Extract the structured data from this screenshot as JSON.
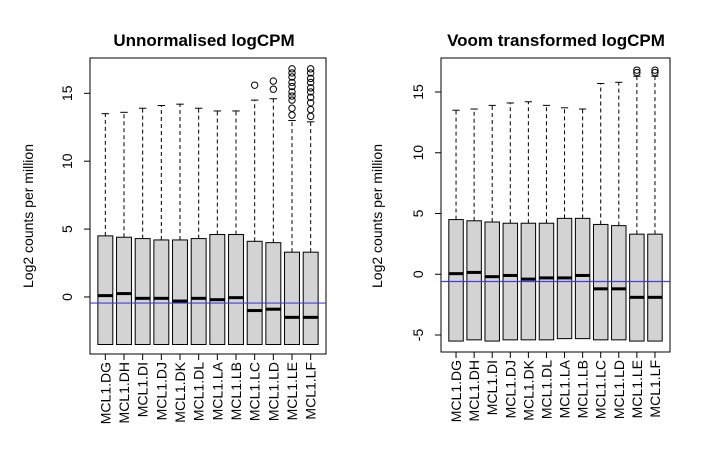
{
  "chart_data": [
    {
      "type": "boxplot",
      "title": "Unnormalised logCPM",
      "xlabel": "",
      "ylabel": "Log2 counts per million",
      "ylim": [
        -4.2,
        17.6
      ],
      "yticks": [
        0,
        5,
        10,
        15
      ],
      "hline": {
        "y": -0.45,
        "color": "#3f3fe0"
      },
      "categories": [
        "MCL1.DG",
        "MCL1.DH",
        "MCL1.DI",
        "MCL1.DJ",
        "MCL1.DK",
        "MCL1.DL",
        "MCL1.LA",
        "MCL1.LB",
        "MCL1.LC",
        "MCL1.LD",
        "MCL1.LE",
        "MCL1.LF"
      ],
      "boxes": [
        {
          "min": -3.5,
          "q1": -3.5,
          "median": 0.1,
          "q3": 4.5,
          "max": 13.5
        },
        {
          "min": -3.5,
          "q1": -3.5,
          "median": 0.25,
          "q3": 4.4,
          "max": 13.6
        },
        {
          "min": -3.5,
          "q1": -3.5,
          "median": -0.1,
          "q3": 4.3,
          "max": 13.9
        },
        {
          "min": -3.5,
          "q1": -3.5,
          "median": -0.1,
          "q3": 4.2,
          "max": 14.1
        },
        {
          "min": -3.5,
          "q1": -3.5,
          "median": -0.3,
          "q3": 4.2,
          "max": 14.2
        },
        {
          "min": -3.5,
          "q1": -3.5,
          "median": -0.1,
          "q3": 4.3,
          "max": 13.9
        },
        {
          "min": -3.5,
          "q1": -3.5,
          "median": -0.2,
          "q3": 4.6,
          "max": 13.7
        },
        {
          "min": -3.5,
          "q1": -3.5,
          "median": -0.05,
          "q3": 4.6,
          "max": 13.7
        },
        {
          "min": -3.5,
          "q1": -3.5,
          "median": -1.0,
          "q3": 4.1,
          "max": 14.5,
          "outliers": [
            15.6
          ]
        },
        {
          "min": -3.5,
          "q1": -3.5,
          "median": -0.9,
          "q3": 4.0,
          "max": 14.6,
          "outliers": [
            15.3,
            15.9
          ]
        },
        {
          "min": -3.5,
          "q1": -3.5,
          "median": -1.5,
          "q3": 3.3,
          "max": 13.0,
          "outliers": [
            13.4,
            13.9,
            14.5,
            14.8,
            15.1,
            15.5,
            15.8,
            16.2,
            16.5,
            16.8
          ]
        },
        {
          "min": -3.5,
          "q1": -3.5,
          "median": -1.5,
          "q3": 3.3,
          "max": 12.9,
          "outliers": [
            13.3,
            13.8,
            14.3,
            14.7,
            15.1,
            15.4,
            15.8,
            16.1,
            16.5,
            16.8
          ]
        }
      ]
    },
    {
      "type": "boxplot",
      "title": "Voom transformed logCPM",
      "xlabel": "",
      "ylabel": "Log2 counts per million",
      "ylim": [
        -6.4,
        17.8
      ],
      "yticks": [
        -5,
        0,
        5,
        10,
        15
      ],
      "hline": {
        "y": -0.6,
        "color": "#3f3fe0"
      },
      "categories": [
        "MCL1.DG",
        "MCL1.DH",
        "MCL1.DI",
        "MCL1.DJ",
        "MCL1.DK",
        "MCL1.DL",
        "MCL1.LA",
        "MCL1.LB",
        "MCL1.LC",
        "MCL1.LD",
        "MCL1.LE",
        "MCL1.LF"
      ],
      "boxes": [
        {
          "min": -5.5,
          "q1": -5.5,
          "median": 0.05,
          "q3": 4.5,
          "max": 13.5
        },
        {
          "min": -5.4,
          "q1": -5.4,
          "median": 0.15,
          "q3": 4.4,
          "max": 13.6
        },
        {
          "min": -5.5,
          "q1": -5.5,
          "median": -0.2,
          "q3": 4.3,
          "max": 13.9
        },
        {
          "min": -5.4,
          "q1": -5.4,
          "median": -0.1,
          "q3": 4.2,
          "max": 14.1
        },
        {
          "min": -5.4,
          "q1": -5.4,
          "median": -0.4,
          "q3": 4.2,
          "max": 14.2
        },
        {
          "min": -5.4,
          "q1": -5.4,
          "median": -0.3,
          "q3": 4.2,
          "max": 13.9
        },
        {
          "min": -5.3,
          "q1": -5.3,
          "median": -0.3,
          "q3": 4.6,
          "max": 13.7
        },
        {
          "min": -5.3,
          "q1": -5.3,
          "median": -0.1,
          "q3": 4.6,
          "max": 13.6
        },
        {
          "min": -5.4,
          "q1": -5.4,
          "median": -1.2,
          "q3": 4.1,
          "max": 15.7
        },
        {
          "min": -5.4,
          "q1": -5.4,
          "median": -1.2,
          "q3": 4.0,
          "max": 15.8
        },
        {
          "min": -5.5,
          "q1": -5.5,
          "median": -1.9,
          "q3": 3.3,
          "max": 16.3,
          "outliers": [
            16.6,
            16.8
          ]
        },
        {
          "min": -5.5,
          "q1": -5.5,
          "median": -1.9,
          "q3": 3.3,
          "max": 16.3,
          "outliers": [
            16.6,
            16.8
          ]
        }
      ]
    }
  ]
}
